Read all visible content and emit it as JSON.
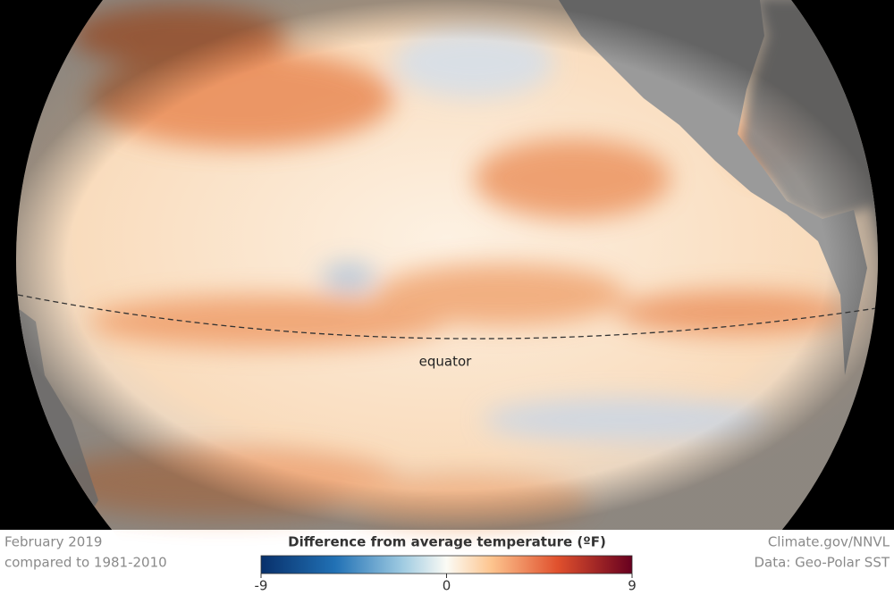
{
  "map": {
    "equator_label": "equator"
  },
  "footer": {
    "date": "February 2019",
    "baseline": "compared to 1981-2010",
    "credit": "Climate.gov/NNVL",
    "source": "Data: Geo-Polar SST"
  },
  "colorbar": {
    "title": "Difference from average temperature (ºF)",
    "lim": [
      -9,
      9
    ],
    "ticks": [
      -9,
      0,
      9
    ]
  }
}
